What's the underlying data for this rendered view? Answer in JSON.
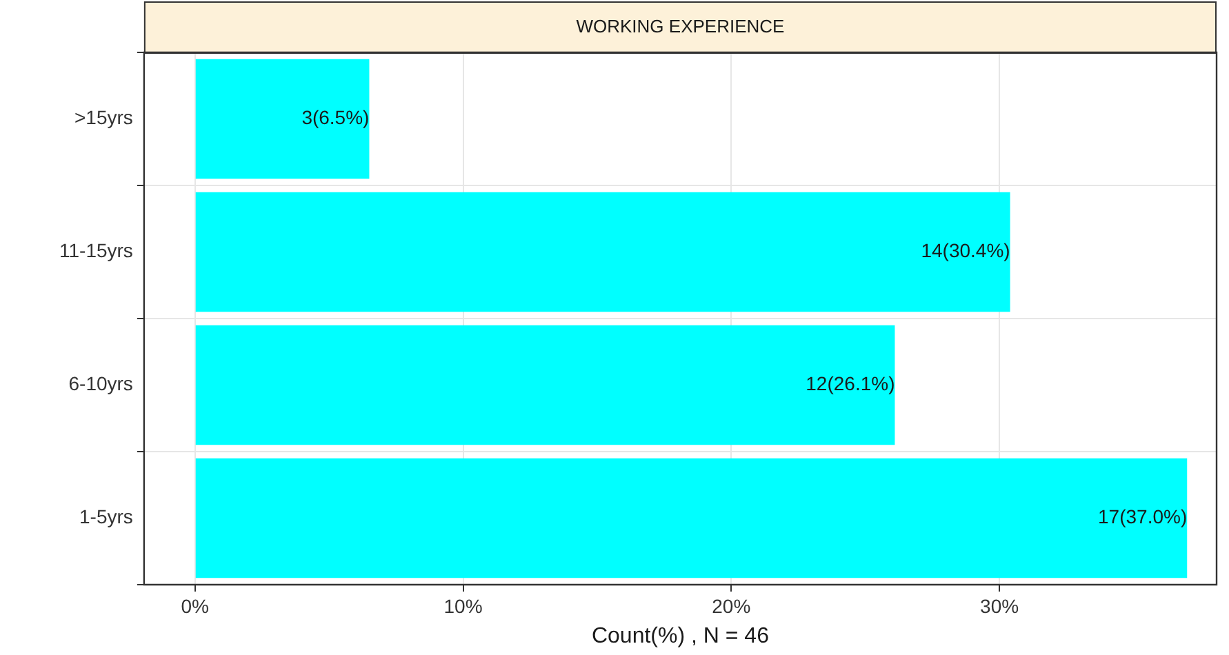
{
  "chart_data": {
    "type": "bar",
    "orientation": "horizontal",
    "title": "WORKING EXPERIENCE",
    "xlabel": "Count(%) , N = 46",
    "categories": [
      ">15yrs",
      "11-15yrs",
      "6-10yrs",
      "1-5yrs"
    ],
    "values": [
      6.5,
      30.4,
      26.1,
      37.0
    ],
    "value_labels": [
      "3(6.5%)",
      "14(30.4%)",
      "12(26.1%)",
      "17(37.0%)"
    ],
    "color": "#00ffff",
    "xlim": [
      -1.9,
      38.1
    ],
    "xticks": [
      {
        "value": 0,
        "label": "0%"
      },
      {
        "value": 10,
        "label": "10%"
      },
      {
        "value": 20,
        "label": "20%"
      },
      {
        "value": 30,
        "label": "30%"
      }
    ],
    "grid": true,
    "legend": false
  }
}
